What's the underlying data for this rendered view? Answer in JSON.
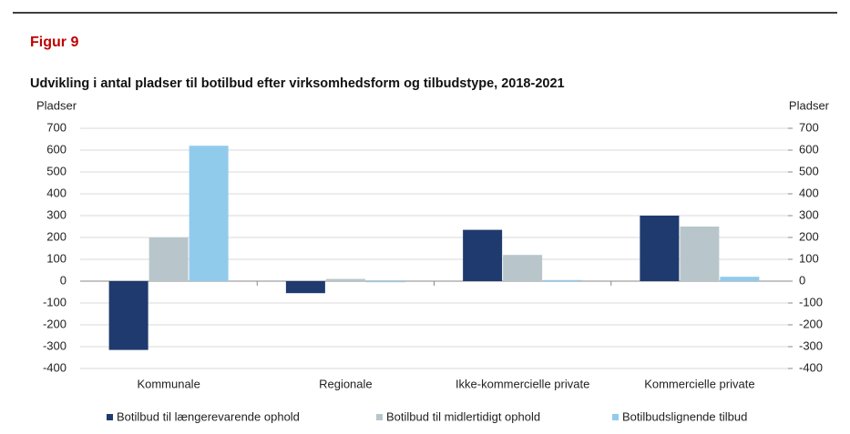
{
  "chart_data": {
    "type": "bar",
    "title": "Figur 9",
    "subtitle": "Udvikling i antal pladser til botilbud efter virksomhedsform og tilbudstype, 2018-2021",
    "y_label": "Pladser",
    "y2_label": "Pladser",
    "categories": [
      "Kommunale",
      "Regionale",
      "Ikke-kommercielle private",
      "Kommercielle private"
    ],
    "series": [
      {
        "name": "Botilbud til længerevarende ophold",
        "color": "#1f3a6e",
        "values": [
          -315,
          -55,
          235,
          300
        ]
      },
      {
        "name": "Botilbud til midlertidigt ophold",
        "color": "#b8c6cb",
        "values": [
          200,
          10,
          120,
          250
        ]
      },
      {
        "name": "Botilbudslignende tilbud",
        "color": "#91cbec",
        "values": [
          620,
          -5,
          5,
          20
        ]
      }
    ],
    "ylim": [
      -400,
      700
    ],
    "yticks": [
      -400,
      -300,
      -200,
      -100,
      0,
      100,
      200,
      300,
      400,
      500,
      600,
      700
    ],
    "y2lim": [
      -400,
      700
    ],
    "y2ticks": [
      -400,
      -300,
      -200,
      -100,
      0,
      100,
      200,
      300,
      400,
      500,
      600,
      700
    ],
    "grid": true
  }
}
